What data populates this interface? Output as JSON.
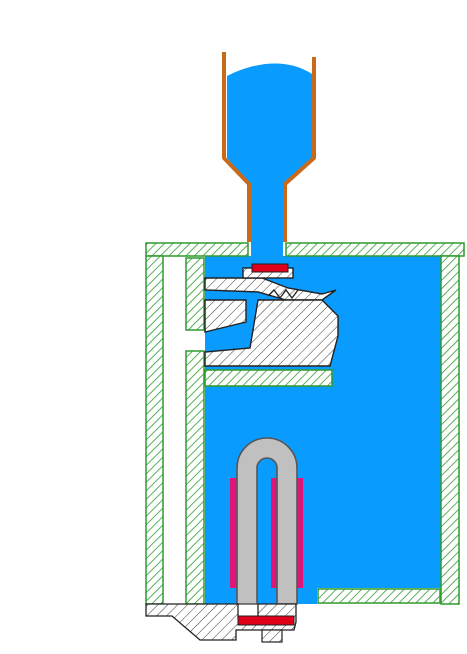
{
  "colors": {
    "background": "#ffffff",
    "water": "#0a9bff",
    "wall_hatch": "#2e9b2e",
    "part_hatch": "#3a3a3a",
    "funnel": "#c86a1a",
    "heater": "#c0c0c0",
    "heater_outline": "#555555",
    "coil": "#e0157a",
    "seal": "#e0001a"
  },
  "icons": {
    "funnel": "funnel-icon",
    "chamber": "chamber-icon",
    "float_valve": "float-valve-icon",
    "heating_element": "heating-element-icon",
    "base_mount": "base-mount-icon"
  }
}
